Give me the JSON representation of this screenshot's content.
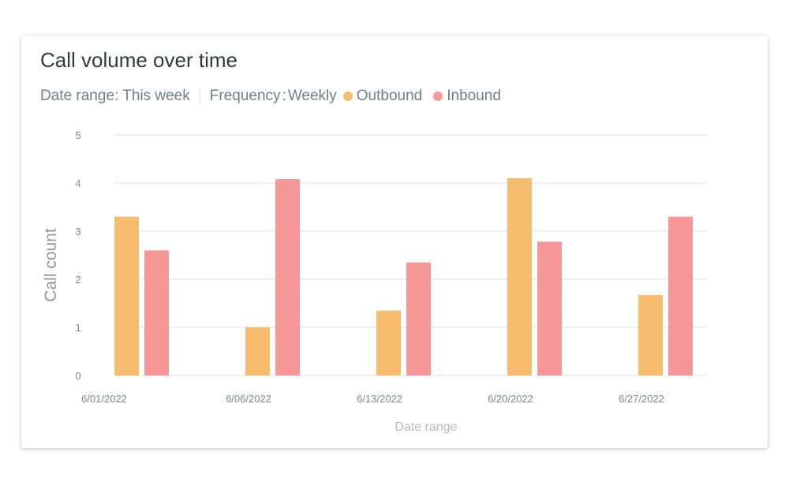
{
  "card": {
    "title": "Call volume over time",
    "date_range_label": "Date range: This week",
    "frequency_label": "Frequency",
    "frequency_colon": ":",
    "frequency_value": "Weekly"
  },
  "colors": {
    "outbound": "#f8bc6e",
    "inbound": "#f79797",
    "gridline": "#e9ecee",
    "text_muted": "#6f8188"
  },
  "chart_data": {
    "type": "bar",
    "xlabel": "Date range",
    "ylabel": "Call count",
    "ylim": [
      0,
      5
    ],
    "yticks": [
      0,
      1,
      2,
      3,
      4,
      5
    ],
    "grid": true,
    "legend_position": "top-left",
    "categories": [
      "6/01/2022",
      "6/06/2022",
      "6/13/2022",
      "6/20/2022",
      "6/27/2022"
    ],
    "series": [
      {
        "name": "Outbound",
        "color": "#f8bc6e",
        "values": [
          3.3,
          1.0,
          1.35,
          4.1,
          1.67
        ]
      },
      {
        "name": "Inbound",
        "color": "#f79797",
        "values": [
          2.6,
          4.08,
          2.35,
          2.78,
          3.3
        ]
      }
    ]
  }
}
